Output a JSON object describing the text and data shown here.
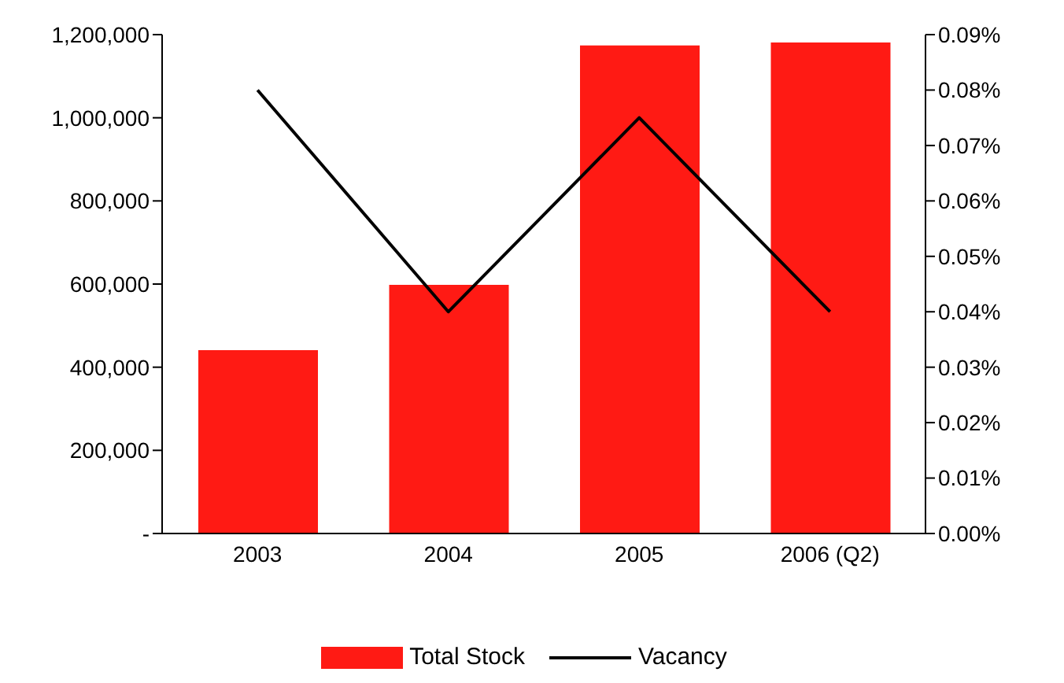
{
  "chart_data": {
    "type": "bar",
    "categories": [
      "2003",
      "2004",
      "2005",
      "2006 (Q2)"
    ],
    "series": [
      {
        "name": "Total Stock",
        "color": "#ff1a14",
        "values": [
          441000,
          598000,
          1174000,
          1181000
        ]
      },
      {
        "name": "Vacancy",
        "type": "line",
        "color": "#000000",
        "axis": "y2",
        "values": [
          0.08,
          0.04,
          0.075,
          0.04
        ]
      }
    ],
    "ylim": [
      0,
      1200000
    ],
    "yticks": [
      {
        "value": 0,
        "label": "-"
      },
      {
        "value": 200000,
        "label": "200,000"
      },
      {
        "value": 400000,
        "label": "400,000"
      },
      {
        "value": 600000,
        "label": "600,000"
      },
      {
        "value": 800000,
        "label": "800,000"
      },
      {
        "value": 1000000,
        "label": "1,000,000"
      },
      {
        "value": 1200000,
        "label": "1,200,000"
      }
    ],
    "y2lim": [
      0,
      0.09
    ],
    "y2ticks": [
      {
        "value": 0,
        "label": "0.00%"
      },
      {
        "value": 0.01,
        "label": "0.01%"
      },
      {
        "value": 0.02,
        "label": "0.02%"
      },
      {
        "value": 0.03,
        "label": "0.03%"
      },
      {
        "value": 0.04,
        "label": "0.04%"
      },
      {
        "value": 0.05,
        "label": "0.05%"
      },
      {
        "value": 0.06,
        "label": "0.06%"
      },
      {
        "value": 0.07,
        "label": "0.07%"
      },
      {
        "value": 0.08,
        "label": "0.08%"
      },
      {
        "value": 0.09,
        "label": "0.09%"
      }
    ],
    "legend": "bottom",
    "marker": "none",
    "grid": false
  }
}
